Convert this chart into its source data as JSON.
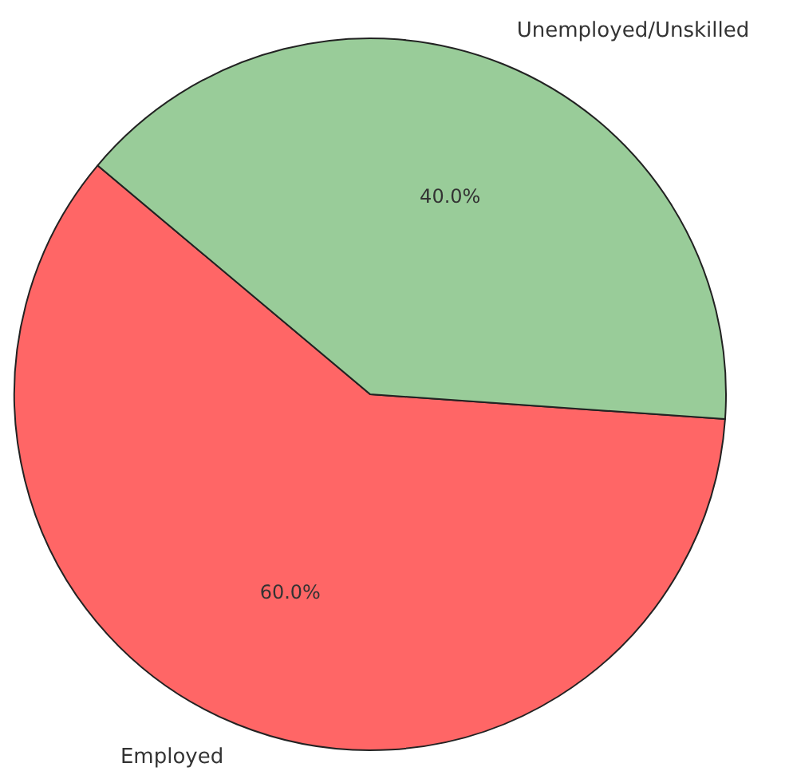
{
  "chart_data": {
    "type": "pie",
    "categories": [
      "Employed",
      "Unemployed/Unskilled"
    ],
    "values": [
      60,
      40
    ],
    "colors": [
      "#ff6666",
      "#99cc99"
    ],
    "value_labels": [
      "60.0%",
      "40.0%"
    ]
  }
}
